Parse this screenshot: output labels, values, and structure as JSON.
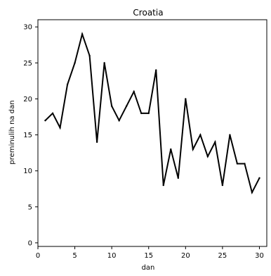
{
  "chart_data": {
    "type": "line",
    "title": "Croatia",
    "xlabel": "dan",
    "ylabel": "preminulih na dan",
    "xlim": [
      0,
      31
    ],
    "ylim": [
      -0.5,
      31
    ],
    "x_ticks": [
      0,
      5,
      10,
      15,
      20,
      25,
      30
    ],
    "y_ticks": [
      0,
      5,
      10,
      15,
      20,
      25,
      30
    ],
    "grid": false,
    "legend": "none",
    "line_color": "#000000",
    "series": [
      {
        "x": [
          1,
          2,
          3,
          4,
          5,
          6,
          7,
          8,
          9,
          10,
          11,
          12,
          13,
          14,
          15,
          16,
          17,
          18,
          19,
          20,
          21,
          22,
          23,
          24,
          25,
          26,
          27,
          28,
          29,
          30
        ],
        "values": [
          17,
          18,
          16,
          22,
          25,
          29,
          26,
          14,
          25,
          19,
          17,
          19,
          21,
          18,
          18,
          24,
          8,
          13,
          9,
          20,
          13,
          15,
          12,
          14,
          8,
          15,
          11,
          11,
          7,
          9
        ]
      }
    ]
  }
}
